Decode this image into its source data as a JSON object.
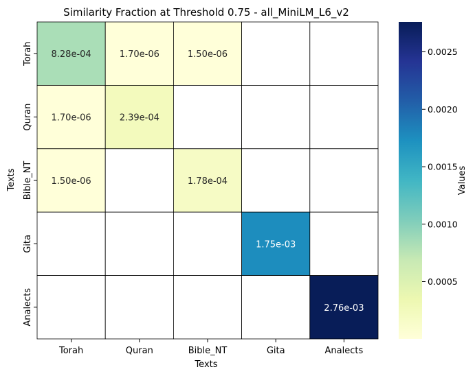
{
  "chart_data": {
    "type": "heatmap",
    "title": "Similarity Fraction at Threshold 0.75 - all_MiniLM_L6_v2",
    "xlabel": "Texts",
    "ylabel": "Texts",
    "x_categories": [
      "Torah",
      "Quran",
      "Bible_NT",
      "Gita",
      "Analects"
    ],
    "y_categories": [
      "Torah",
      "Quran",
      "Bible_NT",
      "Gita",
      "Analects"
    ],
    "cells": [
      [
        0.000828,
        1.7e-06,
        1.5e-06,
        null,
        null
      ],
      [
        1.7e-06,
        0.000239,
        null,
        null,
        null
      ],
      [
        1.5e-06,
        null,
        0.000178,
        null,
        null
      ],
      [
        null,
        null,
        null,
        0.00175,
        null
      ],
      [
        null,
        null,
        null,
        null,
        0.00276
      ]
    ],
    "cell_labels": [
      [
        "8.28e-04",
        "1.70e-06",
        "1.50e-06",
        "",
        ""
      ],
      [
        "1.70e-06",
        "2.39e-04",
        "",
        "",
        ""
      ],
      [
        "1.50e-06",
        "",
        "1.78e-04",
        "",
        ""
      ],
      [
        "",
        "",
        "",
        "1.75e-03",
        ""
      ],
      [
        "",
        "",
        "",
        "",
        "2.76e-03"
      ]
    ],
    "colorbar": {
      "label": "Values",
      "colormap": "YlGnBu",
      "range": [
        1.5e-06,
        0.00276
      ],
      "ticks": [
        0.0005,
        0.001,
        0.0015,
        0.002,
        0.0025
      ],
      "tick_labels": [
        "0.0005",
        "0.0010",
        "0.0015",
        "0.0020",
        "0.0025"
      ]
    },
    "colors": {
      "grid_line": "#000000",
      "empty_cell": "#ffffff",
      "dark_text": "#262626",
      "light_text": "#ffffff",
      "axis": "#000000"
    }
  }
}
